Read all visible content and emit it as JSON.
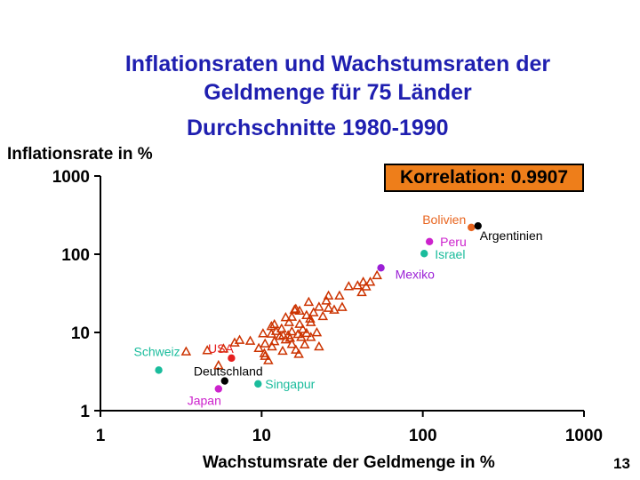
{
  "chart_data": {
    "type": "scatter",
    "title_line1": "Inflationsraten und Wachstumsraten der",
    "title_line2": "Geldmenge für 75 Länder",
    "subtitle": "Durchschnitte 1980-1990",
    "ylabel": "Inflationsrate in %",
    "xlabel": "Wachstumsrate der Geldmenge in %",
    "correlation_label": "Korrelation: 0.9907",
    "x_scale": "log",
    "y_scale": "log",
    "xlim": [
      1,
      1000
    ],
    "ylim": [
      1,
      1000
    ],
    "x_ticks": [
      "1",
      "10",
      "100",
      "1000"
    ],
    "y_ticks": [
      "1",
      "10",
      "100",
      "1000"
    ],
    "grid": false,
    "labeled_points": [
      {
        "label": "Bolivien",
        "x": 200,
        "y": 220,
        "color": "#e8641e"
      },
      {
        "label": "Argentinien",
        "x": 220,
        "y": 230,
        "color": "#000000"
      },
      {
        "label": "Peru",
        "x": 110,
        "y": 145,
        "color": "#cc22cc"
      },
      {
        "label": "Israel",
        "x": 102,
        "y": 102,
        "color": "#1abc9c"
      },
      {
        "label": "Mexiko",
        "x": 55,
        "y": 67,
        "color": "#9b1fd6"
      },
      {
        "label": "Schweiz",
        "x": 2.3,
        "y": 3.3,
        "color": "#1abc9c"
      },
      {
        "label": "USA",
        "x": 6.5,
        "y": 4.7,
        "color": "#e62020"
      },
      {
        "label": "Deutschland",
        "x": 5.9,
        "y": 2.4,
        "color": "#000000"
      },
      {
        "label": "Singapur",
        "x": 9.5,
        "y": 2.2,
        "color": "#1abc9c"
      },
      {
        "label": "Japan",
        "x": 5.4,
        "y": 1.9,
        "color": "#cc22cc"
      }
    ],
    "other_countries": {
      "marker": "triangle",
      "color": "#cc3300",
      "points": [
        [
          3.4,
          5.7
        ],
        [
          4.6,
          5.9
        ],
        [
          5.4,
          3.8
        ],
        [
          5.8,
          6.2
        ],
        [
          6.8,
          7.4
        ],
        [
          7.3,
          8.0
        ],
        [
          8.5,
          7.8
        ],
        [
          9.6,
          6.3
        ],
        [
          10.2,
          9.7
        ],
        [
          10.5,
          7.2
        ],
        [
          10.4,
          5.4
        ],
        [
          11.5,
          9.6
        ],
        [
          11.6,
          6.6
        ],
        [
          12.0,
          12.7
        ],
        [
          12.3,
          10.4
        ],
        [
          13.3,
          11.2
        ],
        [
          13.6,
          9.2
        ],
        [
          14.1,
          15.6
        ],
        [
          14.1,
          8.1
        ],
        [
          14.6,
          9.2
        ],
        [
          15.4,
          10.3
        ],
        [
          15.4,
          15.8
        ],
        [
          15.4,
          7.1
        ],
        [
          16.3,
          6.0
        ],
        [
          16.0,
          19.5
        ],
        [
          16.3,
          20.0
        ],
        [
          17.2,
          12.8
        ],
        [
          17.2,
          18.9
        ],
        [
          17.6,
          8.7
        ],
        [
          19.0,
          9.8
        ],
        [
          19.0,
          16.6
        ],
        [
          19.6,
          24.5
        ],
        [
          20.2,
          13.5
        ],
        [
          20.2,
          8.7
        ],
        [
          22.7,
          21.2
        ],
        [
          22.7,
          6.6
        ],
        [
          24.0,
          16.1
        ],
        [
          25.2,
          25.5
        ],
        [
          26.0,
          29.5
        ],
        [
          26.0,
          20.5
        ],
        [
          28.2,
          19.5
        ],
        [
          30.4,
          29.5
        ],
        [
          31.6,
          21.1
        ],
        [
          34.7,
          38.8
        ],
        [
          39.4,
          39.8
        ],
        [
          41.8,
          32.6
        ],
        [
          42.7,
          44.3
        ],
        [
          44.5,
          38.6
        ],
        [
          47.2,
          44.3
        ],
        [
          52.0,
          53.7
        ],
        [
          11.0,
          4.4
        ],
        [
          10.5,
          5.0
        ],
        [
          12.0,
          7.7
        ],
        [
          13.5,
          5.8
        ],
        [
          15.0,
          8.5
        ],
        [
          17.0,
          5.3
        ],
        [
          18.0,
          11.0
        ],
        [
          20.0,
          15.0
        ],
        [
          22.0,
          10.0
        ],
        [
          11.5,
          12.0
        ],
        [
          13.0,
          9.0
        ],
        [
          14.8,
          13.5
        ],
        [
          16.8,
          9.5
        ],
        [
          18.5,
          7.0
        ],
        [
          21.0,
          18.0
        ]
      ]
    }
  }
}
